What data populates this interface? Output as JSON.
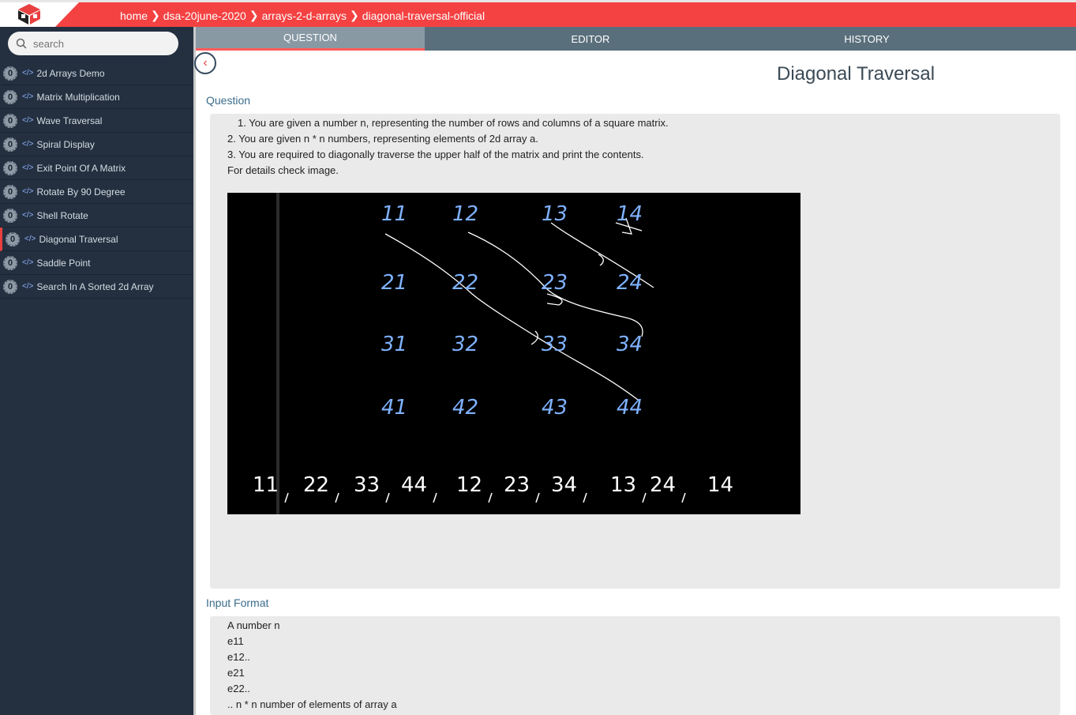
{
  "breadcrumbs": [
    "home",
    "dsa-20june-2020",
    "arrays-2-d-arrays",
    "diagonal-traversal-official"
  ],
  "search": {
    "placeholder": "search"
  },
  "sidebar": {
    "items": [
      {
        "count": "0",
        "label": "2d Arrays Demo"
      },
      {
        "count": "0",
        "label": "Matrix Multiplication"
      },
      {
        "count": "0",
        "label": "Wave Traversal"
      },
      {
        "count": "0",
        "label": "Spiral Display"
      },
      {
        "count": "0",
        "label": "Exit Point Of A Matrix"
      },
      {
        "count": "0",
        "label": "Rotate By 90 Degree"
      },
      {
        "count": "0",
        "label": "Shell Rotate"
      },
      {
        "count": "0",
        "label": "Diagonal Traversal"
      },
      {
        "count": "0",
        "label": "Saddle Point"
      },
      {
        "count": "0",
        "label": "Search In A Sorted 2d Array"
      }
    ],
    "active_index": 7
  },
  "tabs": [
    "QUESTION",
    "EDITOR",
    "HISTORY"
  ],
  "title": "Diagonal Traversal",
  "question": {
    "label": "Question",
    "lines": [
      "1. You are given a number n, representing the number of rows and columns of a square matrix.",
      "2. You are given n * n numbers, representing elements of 2d array a.",
      "3. You are required to diagonally traverse the upper half of the matrix and print the contents.",
      "For details check image."
    ],
    "image": {
      "grid": [
        [
          "11",
          "12",
          "13",
          "14"
        ],
        [
          "21",
          "22",
          "23",
          "24"
        ],
        [
          "31",
          "32",
          "33",
          "34"
        ],
        [
          "41",
          "42",
          "43",
          "44"
        ]
      ],
      "output": [
        "11",
        "22",
        "33",
        "44",
        "12",
        "23",
        "34",
        "13",
        "24",
        "14"
      ]
    }
  },
  "input_format": {
    "label": "Input Format",
    "lines": [
      "A number n",
      "e11",
      "e12..",
      "e21",
      "e22..",
      ".. n * n number of elements of array a"
    ]
  },
  "colors": {
    "accent": "#f44242",
    "sidebar": "#243040",
    "tabs": "#5a6f7c",
    "ink": "#7fb2ff"
  }
}
